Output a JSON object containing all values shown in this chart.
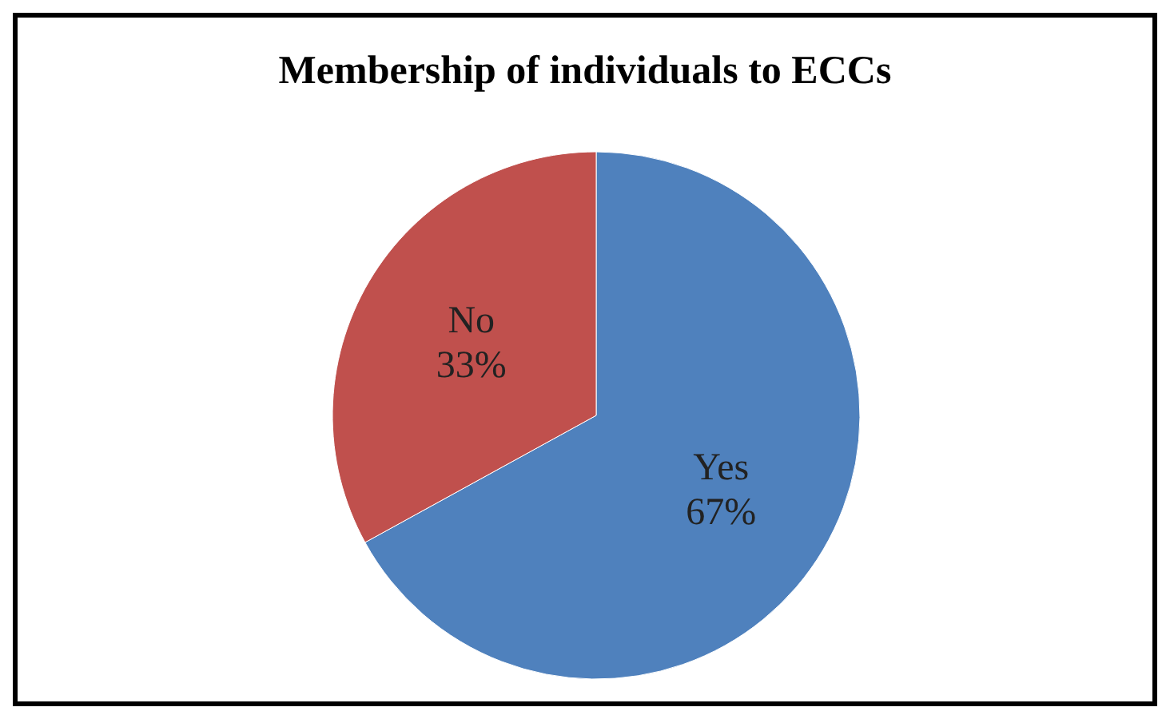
{
  "chart_data": {
    "type": "pie",
    "title": "Membership of individuals to ECCs",
    "categories": [
      "Yes",
      "No"
    ],
    "values": [
      67,
      33
    ],
    "colors": [
      "#4f81bd",
      "#c0504d"
    ],
    "value_labels": [
      "67%",
      "33%"
    ]
  }
}
